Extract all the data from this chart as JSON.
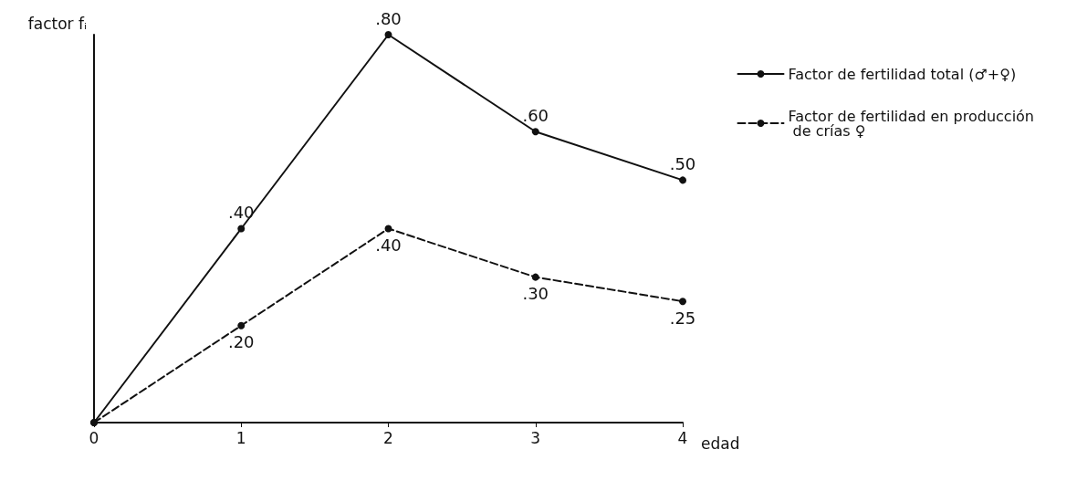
{
  "chart_data": {
    "type": "line",
    "xlabel": "edad",
    "ylabel": "factor fᵢ",
    "x": [
      0,
      1,
      2,
      3,
      4
    ],
    "xlim": [
      0,
      4
    ],
    "xticks": [
      0,
      1,
      2,
      3,
      4
    ],
    "series": [
      {
        "name": "Factor de fertilidad total (♂+♀)",
        "color": "#111111",
        "line_style": "solid",
        "values": [
          0,
          0.4,
          0.8,
          0.6,
          0.5
        ],
        "value_labels": [
          null,
          ".40",
          ".80",
          ".60",
          ".50"
        ]
      },
      {
        "name": "Factor de fertilidad en producción de crías ♀",
        "color": "#111111",
        "line_style": "dashed",
        "values": [
          0,
          0.2,
          0.4,
          0.3,
          0.25
        ],
        "value_labels": [
          null,
          ".20",
          ".40",
          ".30",
          ".25"
        ]
      }
    ],
    "tick_labels": "x",
    "grid": false,
    "legend": "top right",
    "marker": "circle"
  }
}
